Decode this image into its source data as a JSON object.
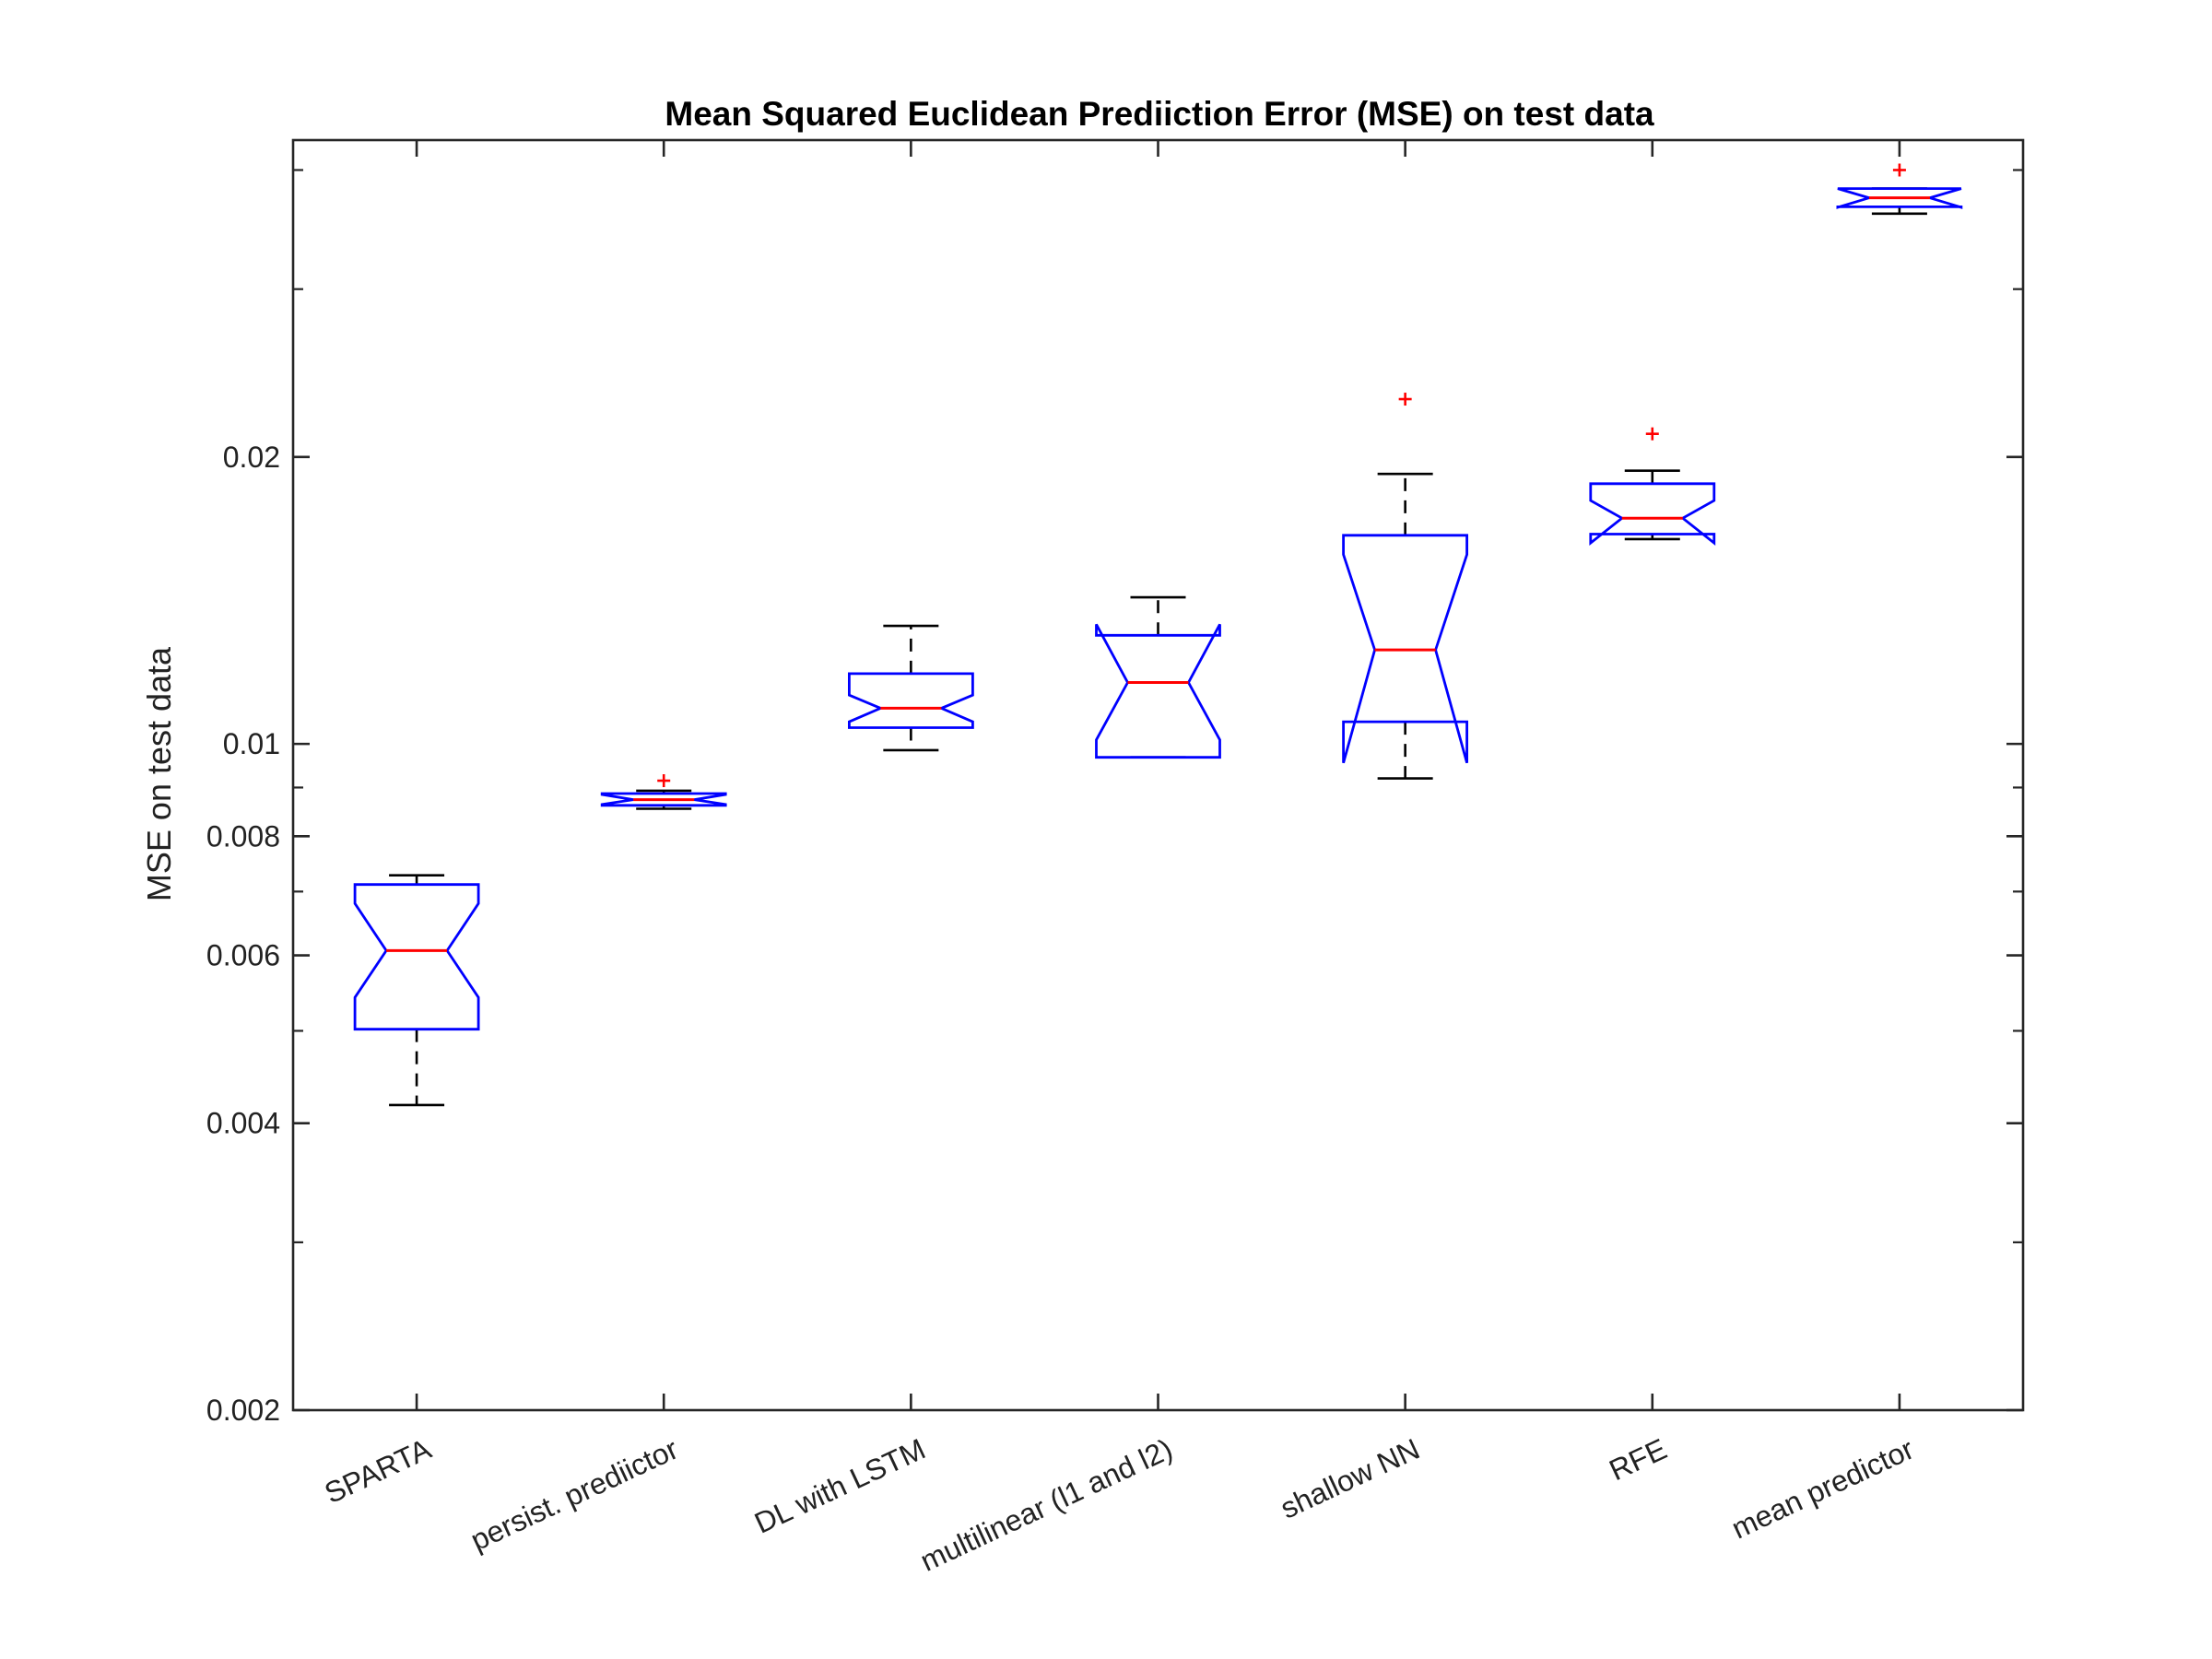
{
  "chart_data": {
    "type": "box",
    "title": "Mean Squared Euclidean Prediiction Error (MSE) on test data",
    "xlabel": "",
    "ylabel": "MSE on test data",
    "yscale": "log",
    "ylim": [
      0.002,
      0.043
    ],
    "yticks": [
      0.002,
      0.004,
      0.006,
      0.008,
      0.01,
      0.02
    ],
    "ytick_labels": [
      "0.002",
      "0.004",
      "0.006",
      "0.008",
      "0.01",
      "0.02"
    ],
    "notched": true,
    "grid": false,
    "colors": {
      "box": "#0000ff",
      "median": "#ff0000",
      "whisker": "#000000",
      "outlier": "#ff0000"
    },
    "categories": [
      "SPARTA",
      "persist. prediictor",
      "DL with LSTM",
      "multilinear (l1 and l2)",
      "shallow NN",
      "RFE",
      "mean predictor"
    ],
    "boxes": [
      {
        "name": "SPARTA",
        "whisker_low": 0.00418,
        "q1": 0.00502,
        "median": 0.00607,
        "q3": 0.00712,
        "whisker_high": 0.00728,
        "notch_low": 0.00542,
        "notch_high": 0.0068,
        "outliers": []
      },
      {
        "name": "persist. prediictor",
        "whisker_low": 0.00855,
        "q1": 0.00862,
        "median": 0.00874,
        "q3": 0.00887,
        "whisker_high": 0.00893,
        "notch_low": 0.00864,
        "notch_high": 0.00885,
        "outliers": [
          0.00915
        ]
      },
      {
        "name": "DL with LSTM",
        "whisker_low": 0.00985,
        "q1": 0.0104,
        "median": 0.0109,
        "q3": 0.01185,
        "whisker_high": 0.0133,
        "notch_low": 0.01055,
        "notch_high": 0.01125,
        "outliers": []
      },
      {
        "name": "multilinear (l1 and l2)",
        "whisker_low": 0.00968,
        "q1": 0.00968,
        "median": 0.0116,
        "q3": 0.013,
        "whisker_high": 0.01425,
        "notch_low": 0.0101,
        "notch_high": 0.01335,
        "outliers": []
      },
      {
        "name": "shallow NN",
        "whisker_low": 0.0092,
        "q1": 0.01055,
        "median": 0.01255,
        "q3": 0.01655,
        "whisker_high": 0.0192,
        "notch_low": 0.00955,
        "notch_high": 0.0158,
        "outliers": [
          0.023
        ]
      },
      {
        "name": "RFE",
        "whisker_low": 0.0164,
        "q1": 0.0166,
        "median": 0.01725,
        "q3": 0.01875,
        "whisker_high": 0.01935,
        "notch_low": 0.01625,
        "notch_high": 0.018,
        "outliers": [
          0.02115
        ]
      },
      {
        "name": "mean predictor",
        "whisker_low": 0.036,
        "q1": 0.0366,
        "median": 0.0374,
        "q3": 0.03825,
        "whisker_high": 0.03825,
        "notch_low": 0.03655,
        "notch_high": 0.03825,
        "outliers": [
          0.04
        ]
      }
    ]
  }
}
